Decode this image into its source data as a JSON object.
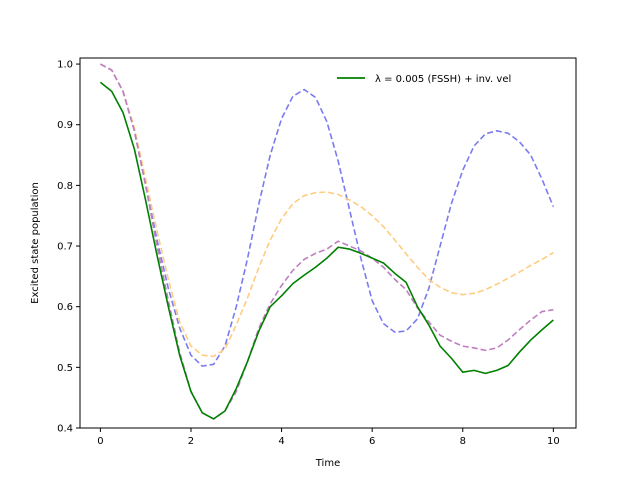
{
  "chart_data": {
    "type": "line",
    "xlabel": "Time",
    "ylabel": "Excited state population",
    "xlim": [
      -0.45,
      10.5
    ],
    "ylim": [
      0.4,
      1.01
    ],
    "xticks": [
      0,
      2,
      4,
      6,
      8,
      10
    ],
    "yticks": [
      0.4,
      0.5,
      0.6,
      0.7,
      0.8,
      0.9,
      1.0
    ],
    "x_tick_labels": [
      "0",
      "2",
      "4",
      "6",
      "8",
      "10"
    ],
    "y_tick_labels": [
      "0.4",
      "0.5",
      "0.6",
      "0.7",
      "0.8",
      "0.9",
      "1.0"
    ],
    "grid": false,
    "legend_position": "top-right",
    "legend": {
      "label": "λ = 0.005 (FSSH) + inv. vel"
    },
    "series": [
      {
        "name": "",
        "color": "#7b7bf0",
        "style": "dashed",
        "points": [
          [
            0,
            1.0
          ],
          [
            0.25,
            0.99
          ],
          [
            0.5,
            0.955
          ],
          [
            0.75,
            0.89
          ],
          [
            1.0,
            0.8
          ],
          [
            1.25,
            0.71
          ],
          [
            1.5,
            0.63
          ],
          [
            1.75,
            0.565
          ],
          [
            2.0,
            0.52
          ],
          [
            2.25,
            0.502
          ],
          [
            2.5,
            0.505
          ],
          [
            2.75,
            0.535
          ],
          [
            3.0,
            0.6
          ],
          [
            3.25,
            0.68
          ],
          [
            3.5,
            0.77
          ],
          [
            3.75,
            0.85
          ],
          [
            4.0,
            0.91
          ],
          [
            4.25,
            0.947
          ],
          [
            4.5,
            0.958
          ],
          [
            4.75,
            0.945
          ],
          [
            5.0,
            0.905
          ],
          [
            5.25,
            0.84
          ],
          [
            5.5,
            0.76
          ],
          [
            5.75,
            0.68
          ],
          [
            6.0,
            0.61
          ],
          [
            6.25,
            0.572
          ],
          [
            6.5,
            0.558
          ],
          [
            6.75,
            0.56
          ],
          [
            7.0,
            0.58
          ],
          [
            7.25,
            0.63
          ],
          [
            7.5,
            0.7
          ],
          [
            7.75,
            0.77
          ],
          [
            8.0,
            0.825
          ],
          [
            8.25,
            0.865
          ],
          [
            8.5,
            0.885
          ],
          [
            8.75,
            0.89
          ],
          [
            9.0,
            0.886
          ],
          [
            9.25,
            0.872
          ],
          [
            9.5,
            0.85
          ],
          [
            9.75,
            0.81
          ],
          [
            10.0,
            0.765
          ]
        ]
      },
      {
        "name": "",
        "color": "#ffcc80",
        "style": "dashed",
        "points": [
          [
            0,
            1.0
          ],
          [
            0.25,
            0.99
          ],
          [
            0.5,
            0.955
          ],
          [
            0.75,
            0.895
          ],
          [
            1.0,
            0.81
          ],
          [
            1.25,
            0.725
          ],
          [
            1.5,
            0.645
          ],
          [
            1.75,
            0.575
          ],
          [
            2.0,
            0.535
          ],
          [
            2.25,
            0.52
          ],
          [
            2.5,
            0.518
          ],
          [
            2.75,
            0.53
          ],
          [
            3.0,
            0.57
          ],
          [
            3.25,
            0.615
          ],
          [
            3.5,
            0.665
          ],
          [
            3.75,
            0.71
          ],
          [
            4.0,
            0.745
          ],
          [
            4.25,
            0.77
          ],
          [
            4.5,
            0.783
          ],
          [
            4.75,
            0.788
          ],
          [
            5.0,
            0.789
          ],
          [
            5.25,
            0.785
          ],
          [
            5.5,
            0.776
          ],
          [
            5.75,
            0.765
          ],
          [
            6.0,
            0.75
          ],
          [
            6.25,
            0.732
          ],
          [
            6.5,
            0.71
          ],
          [
            6.75,
            0.687
          ],
          [
            7.0,
            0.665
          ],
          [
            7.25,
            0.645
          ],
          [
            7.5,
            0.632
          ],
          [
            7.75,
            0.623
          ],
          [
            8.0,
            0.62
          ],
          [
            8.25,
            0.622
          ],
          [
            8.5,
            0.628
          ],
          [
            8.75,
            0.637
          ],
          [
            9.0,
            0.647
          ],
          [
            9.25,
            0.657
          ],
          [
            9.5,
            0.668
          ],
          [
            9.75,
            0.678
          ],
          [
            10.0,
            0.689
          ]
        ]
      },
      {
        "name": "",
        "color": "#bf7fbf",
        "style": "dashed",
        "points": [
          [
            0,
            1.0
          ],
          [
            0.25,
            0.99
          ],
          [
            0.5,
            0.955
          ],
          [
            0.75,
            0.89
          ],
          [
            1.0,
            0.8
          ],
          [
            1.25,
            0.7
          ],
          [
            1.5,
            0.61
          ],
          [
            1.75,
            0.525
          ],
          [
            2.0,
            0.46
          ],
          [
            2.25,
            0.425
          ],
          [
            2.5,
            0.415
          ],
          [
            2.75,
            0.428
          ],
          [
            3.0,
            0.46
          ],
          [
            3.25,
            0.51
          ],
          [
            3.5,
            0.565
          ],
          [
            3.75,
            0.605
          ],
          [
            4.0,
            0.635
          ],
          [
            4.25,
            0.66
          ],
          [
            4.5,
            0.678
          ],
          [
            4.75,
            0.688
          ],
          [
            5.0,
            0.695
          ],
          [
            5.25,
            0.708
          ],
          [
            5.5,
            0.7
          ],
          [
            5.75,
            0.692
          ],
          [
            6.0,
            0.68
          ],
          [
            6.25,
            0.665
          ],
          [
            6.5,
            0.645
          ],
          [
            6.75,
            0.628
          ],
          [
            7.0,
            0.598
          ],
          [
            7.25,
            0.575
          ],
          [
            7.5,
            0.553
          ],
          [
            7.75,
            0.543
          ],
          [
            8.0,
            0.535
          ],
          [
            8.25,
            0.532
          ],
          [
            8.5,
            0.528
          ],
          [
            8.75,
            0.532
          ],
          [
            9.0,
            0.545
          ],
          [
            9.25,
            0.562
          ],
          [
            9.5,
            0.578
          ],
          [
            9.75,
            0.592
          ],
          [
            10.0,
            0.595
          ]
        ]
      },
      {
        "name": "λ = 0.005 (FSSH) + inv. vel",
        "color": "#008000",
        "style": "solid",
        "points": [
          [
            0,
            0.97
          ],
          [
            0.25,
            0.955
          ],
          [
            0.5,
            0.92
          ],
          [
            0.75,
            0.86
          ],
          [
            1.0,
            0.775
          ],
          [
            1.25,
            0.685
          ],
          [
            1.5,
            0.6
          ],
          [
            1.75,
            0.52
          ],
          [
            2.0,
            0.46
          ],
          [
            2.25,
            0.425
          ],
          [
            2.5,
            0.415
          ],
          [
            2.75,
            0.428
          ],
          [
            3.0,
            0.465
          ],
          [
            3.25,
            0.51
          ],
          [
            3.5,
            0.56
          ],
          [
            3.75,
            0.6
          ],
          [
            4.0,
            0.618
          ],
          [
            4.25,
            0.638
          ],
          [
            4.5,
            0.652
          ],
          [
            4.75,
            0.665
          ],
          [
            5.0,
            0.68
          ],
          [
            5.25,
            0.698
          ],
          [
            5.5,
            0.695
          ],
          [
            5.75,
            0.688
          ],
          [
            6.0,
            0.68
          ],
          [
            6.25,
            0.672
          ],
          [
            6.5,
            0.655
          ],
          [
            6.75,
            0.64
          ],
          [
            7.0,
            0.6
          ],
          [
            7.25,
            0.57
          ],
          [
            7.5,
            0.535
          ],
          [
            7.75,
            0.515
          ],
          [
            8.0,
            0.492
          ],
          [
            8.25,
            0.495
          ],
          [
            8.5,
            0.49
          ],
          [
            8.75,
            0.495
          ],
          [
            9.0,
            0.503
          ],
          [
            9.25,
            0.525
          ],
          [
            9.5,
            0.545
          ],
          [
            9.75,
            0.562
          ],
          [
            10.0,
            0.578
          ]
        ]
      }
    ]
  }
}
